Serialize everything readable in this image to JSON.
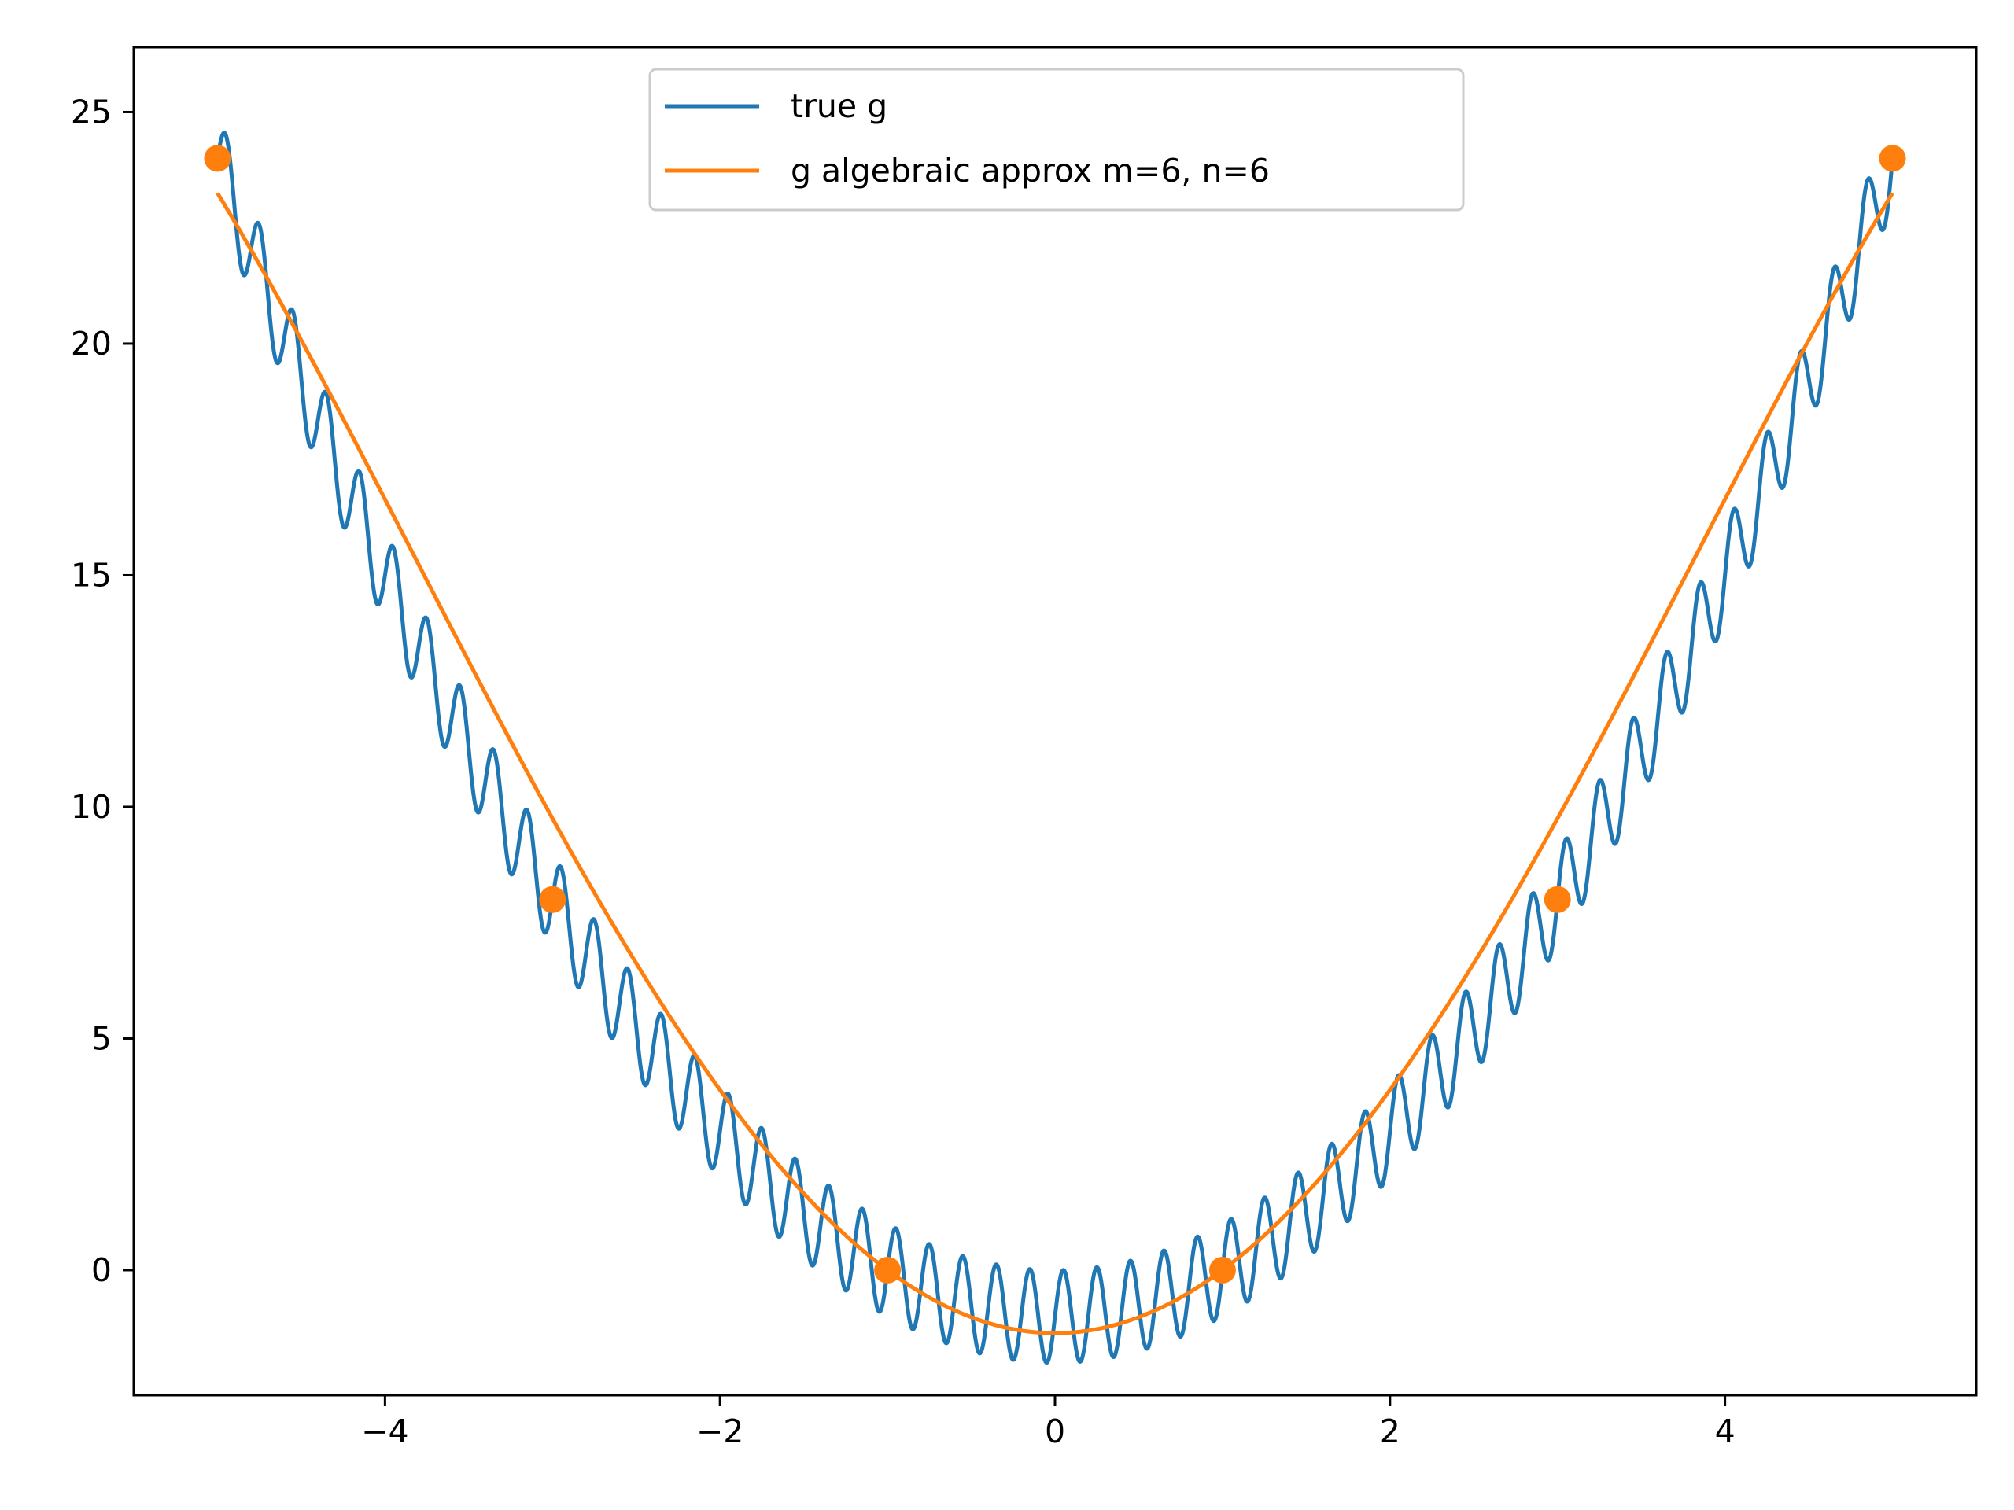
{
  "chart_data": {
    "type": "line",
    "title": "",
    "xlabel": "",
    "ylabel": "",
    "xlim": [
      -5.5,
      5.5
    ],
    "ylim": [
      -2.7,
      26.4
    ],
    "xticks": [
      -4,
      -2,
      0,
      2,
      4
    ],
    "xtick_labels": [
      "−4",
      "−2",
      "0",
      "2",
      "4"
    ],
    "yticks": [
      0,
      5,
      10,
      15,
      20,
      25
    ],
    "ytick_labels": [
      "0",
      "5",
      "10",
      "15",
      "20",
      "25"
    ],
    "grid": false,
    "legend_position": "upper center",
    "series": [
      {
        "name": "true g",
        "color": "#1f77b4",
        "formula": "x^2 - 1 + sin(10*pi*x)",
        "x_range": [
          -5,
          5
        ],
        "samples": [
          {
            "x": -5,
            "y": 24
          },
          {
            "x": -4.9,
            "y": 25.0
          },
          {
            "x": -4.8,
            "y": 22.0
          },
          {
            "x": -4.7,
            "y": 23.1
          },
          {
            "x": -4.5,
            "y": 21.2
          },
          {
            "x": -4.1,
            "y": 17.8
          },
          {
            "x": -3.7,
            "y": 14.7
          },
          {
            "x": -3.3,
            "y": 11.9
          },
          {
            "x": -3,
            "y": 8
          },
          {
            "x": -2.9,
            "y": 9.4
          },
          {
            "x": -2.1,
            "y": 5.4
          },
          {
            "x": -1.3,
            "y": 2.7
          },
          {
            "x": -1,
            "y": 0
          },
          {
            "x": -0.1,
            "y": 0.01
          },
          {
            "x": 0,
            "y": -1
          },
          {
            "x": 0.1,
            "y": -1
          },
          {
            "x": 1,
            "y": 0
          },
          {
            "x": 1.3,
            "y": 2.7
          },
          {
            "x": 2.1,
            "y": 5.4
          },
          {
            "x": 2.9,
            "y": 9.4
          },
          {
            "x": 3,
            "y": 8
          },
          {
            "x": 3.7,
            "y": 14.7
          },
          {
            "x": 4.5,
            "y": 21.2
          },
          {
            "x": 4.9,
            "y": 25.0
          },
          {
            "x": 5,
            "y": 24
          }
        ]
      },
      {
        "name": "g algebraic approx m=6, n=6",
        "color": "#ff7f0e",
        "formula": "x^2 - 1.375 + 0.0625*x^4/... (rational fit through nodes)",
        "x_range": [
          -5,
          5
        ],
        "samples": [
          {
            "x": -5,
            "y": 24
          },
          {
            "x": -4,
            "y": 15.1
          },
          {
            "x": -3,
            "y": 8
          },
          {
            "x": -2,
            "y": 3.2
          },
          {
            "x": -1,
            "y": 0
          },
          {
            "x": 0,
            "y": -1.35
          },
          {
            "x": 1,
            "y": 0
          },
          {
            "x": 2,
            "y": 3.2
          },
          {
            "x": 3,
            "y": 8
          },
          {
            "x": 4,
            "y": 15.1
          },
          {
            "x": 5,
            "y": 24
          }
        ]
      }
    ],
    "nodes": {
      "color": "#ff7f0e",
      "points": [
        {
          "x": -5,
          "y": 24
        },
        {
          "x": -3,
          "y": 8
        },
        {
          "x": -1,
          "y": 0
        },
        {
          "x": 1,
          "y": 0
        },
        {
          "x": 3,
          "y": 8
        },
        {
          "x": 5,
          "y": 24
        }
      ]
    },
    "legend": [
      "true g",
      "g algebraic approx m=6, n=6"
    ]
  }
}
